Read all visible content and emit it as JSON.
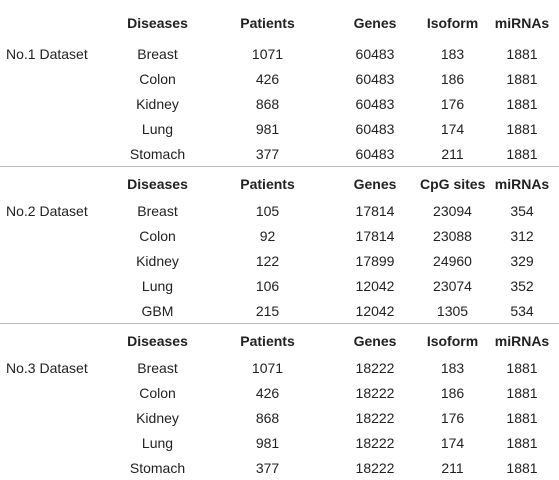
{
  "table": {
    "sections": [
      {
        "label": "No.1 Dataset",
        "header": [
          "Diseases",
          "Patients",
          "Genes",
          "Isoform",
          "miRNAs"
        ],
        "rows": [
          [
            "Breast",
            1071,
            60483,
            183,
            1881
          ],
          [
            "Colon",
            426,
            60483,
            186,
            1881
          ],
          [
            "Kidney",
            868,
            60483,
            176,
            1881
          ],
          [
            "Lung",
            981,
            60483,
            174,
            1881
          ],
          [
            "Stomach",
            377,
            60483,
            211,
            1881
          ]
        ]
      },
      {
        "label": "No.2 Dataset",
        "header": [
          "Diseases",
          "Patients",
          "Genes",
          "CpG sites",
          "miRNAs"
        ],
        "rows": [
          [
            "Breast",
            105,
            17814,
            23094,
            354
          ],
          [
            "Colon",
            92,
            17814,
            23088,
            312
          ],
          [
            "Kidney",
            122,
            17899,
            24960,
            329
          ],
          [
            "Lung",
            106,
            12042,
            23074,
            352
          ],
          [
            "GBM",
            215,
            12042,
            1305,
            534
          ]
        ]
      },
      {
        "label": "No.3 Dataset",
        "header": [
          "Diseases",
          "Patients",
          "Genes",
          "Isoform",
          "miRNAs"
        ],
        "rows": [
          [
            "Breast",
            1071,
            18222,
            183,
            1881
          ],
          [
            "Colon",
            426,
            18222,
            186,
            1881
          ],
          [
            "Kidney",
            868,
            18222,
            176,
            1881
          ],
          [
            "Lung",
            981,
            18222,
            174,
            1881
          ],
          [
            "Stomach",
            377,
            18222,
            211,
            1881
          ]
        ]
      }
    ]
  }
}
